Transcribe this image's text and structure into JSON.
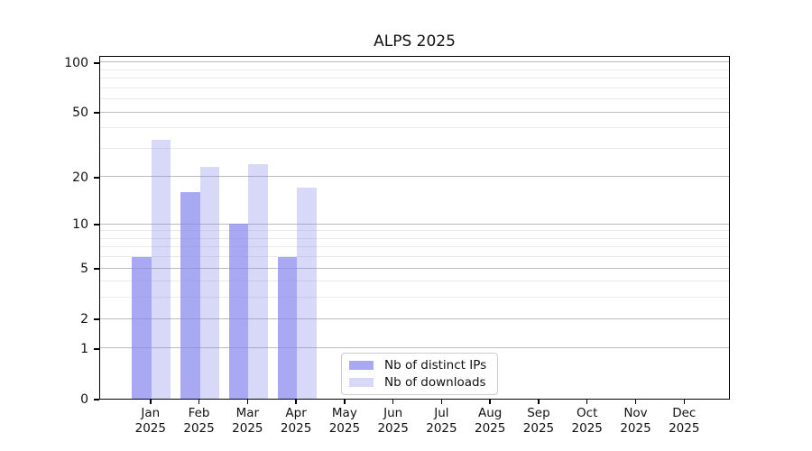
{
  "chart_data": {
    "type": "bar",
    "title": "ALPS 2025",
    "categories": [
      "Jan",
      "Feb",
      "Mar",
      "Apr",
      "May",
      "Jun",
      "Jul",
      "Aug",
      "Sep",
      "Oct",
      "Nov",
      "Dec"
    ],
    "category_year": "2025",
    "series": [
      {
        "name": "Nb of distinct IPs",
        "color": "rgba(136,136,238,0.72)",
        "values": [
          6,
          16,
          10,
          6,
          0,
          0,
          0,
          0,
          0,
          0,
          0,
          0
        ]
      },
      {
        "name": "Nb of downloads",
        "color": "rgba(136,136,238,0.33)",
        "values": [
          34,
          23,
          24,
          17,
          0,
          0,
          0,
          0,
          0,
          0,
          0,
          0
        ]
      }
    ],
    "y_scale": "log1p",
    "y_axis_ticks": [
      0,
      1,
      2,
      5,
      10,
      20,
      50,
      100
    ],
    "y_minor_gridlines": [
      3,
      4,
      6,
      7,
      8,
      9,
      30,
      40,
      60,
      70,
      80,
      90
    ],
    "y_top": 110.4,
    "ylim": [
      0,
      110.4
    ],
    "xlabel": "",
    "ylabel": "",
    "grid": true,
    "legend_position": "bottom-center"
  },
  "colors": {
    "background": "#ffffff",
    "spine": "#000000",
    "major_grid": "#bbbbbb",
    "minor_grid": "#e9e9e9",
    "text": "#111111",
    "bar_base": "#8888ee"
  }
}
